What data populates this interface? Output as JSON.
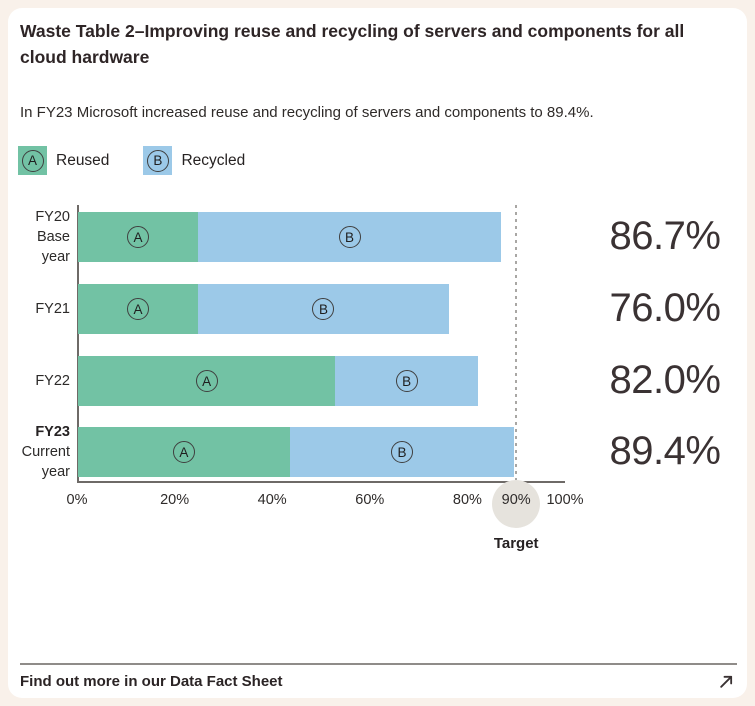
{
  "header": {
    "title": "Waste Table 2–Improving reuse and recycling of servers and components for all cloud hardware",
    "subtitle": "In FY23 Microsoft increased reuse and recycling of servers and components to 89.4%."
  },
  "legend": {
    "items": [
      {
        "key": "A",
        "label": "Reused",
        "color": "#72c2a4"
      },
      {
        "key": "B",
        "label": "Recycled",
        "color": "#9cc9e8"
      }
    ]
  },
  "colors": {
    "page_background": "#f9f1ea",
    "card_background": "#ffffff",
    "reused_green": "#72c2a4",
    "recycled_blue": "#9cc9e8",
    "target_circle_gray": "#e6e3dd",
    "axis_gray": "#6e6a67",
    "text_dark": "#2e2526"
  },
  "chart_data": {
    "type": "bar",
    "orientation": "horizontal",
    "stacked": true,
    "grid": false,
    "categories": [
      {
        "lines": [
          "FY20",
          "Base",
          "year"
        ],
        "bold_first": false
      },
      {
        "lines": [
          "FY21"
        ],
        "bold_first": false
      },
      {
        "lines": [
          "FY22"
        ],
        "bold_first": false
      },
      {
        "lines": [
          "FY23",
          "Current",
          "year"
        ],
        "bold_first": true
      }
    ],
    "series": [
      {
        "name": "Reused",
        "key": "A",
        "color": "#72c2a4",
        "values": [
          24.6,
          24.6,
          52.7,
          43.4
        ]
      },
      {
        "name": "Recycled",
        "key": "B",
        "color": "#9cc9e8",
        "values": [
          62.1,
          51.4,
          29.3,
          46.0
        ]
      }
    ],
    "totals_pct": [
      86.7,
      76.0,
      82.0,
      89.4
    ],
    "totals_display": [
      "86.7%",
      "76.0%",
      "82.0%",
      "89.4%"
    ],
    "xlim": [
      0,
      100
    ],
    "tick_values": [
      0,
      20,
      40,
      60,
      80,
      90,
      100
    ],
    "tick_labels": [
      "0%",
      "20%",
      "40%",
      "60%",
      "80%",
      "90%",
      "100%"
    ],
    "target": {
      "value": 90,
      "tick_label": "90%",
      "label": "Target"
    },
    "legend_position": "top-left"
  },
  "footer": {
    "link_text": "Find out more in our Data Fact Sheet",
    "arrow_icon": "arrow-up-right"
  }
}
